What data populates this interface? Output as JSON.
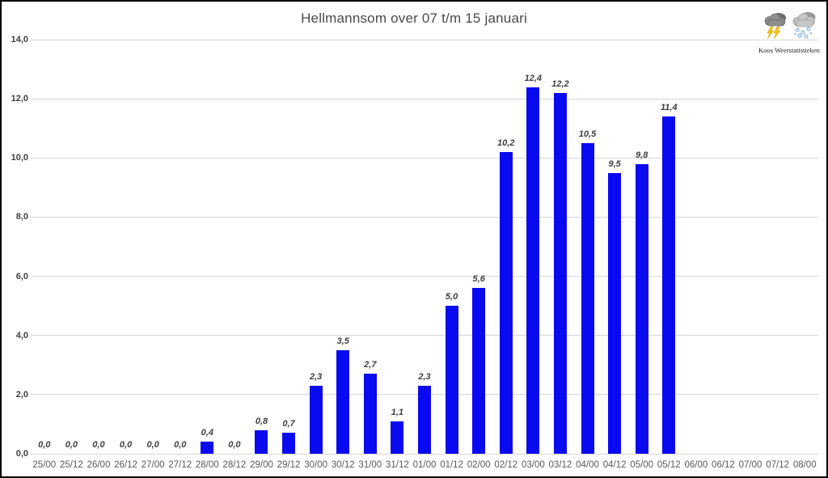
{
  "header": {
    "title": "Hellmannsom over 07 t/m 15 januari",
    "logo": {
      "caption": "Koos Weerstatistieken",
      "icons": [
        "storm-cloud-lightning-icon",
        "snow-cloud-icon"
      ]
    }
  },
  "chart_data": {
    "type": "bar",
    "title": "Hellmannsom over 07 t/m 15 januari",
    "xlabel": "",
    "ylabel": "",
    "ylim": [
      0,
      14
    ],
    "ytick_step": 2,
    "ytick_labels": [
      "0,0",
      "2,0",
      "4,0",
      "6,0",
      "8,0",
      "10,0",
      "12,0",
      "14,0"
    ],
    "grid": true,
    "gridline_color": "#d6d6d6",
    "bar_color": "#0a0af0",
    "legend": "none",
    "categories": [
      "25/00",
      "25/12",
      "26/00",
      "26/12",
      "27/00",
      "27/12",
      "28/00",
      "28/12",
      "29/00",
      "29/12",
      "30/00",
      "30/12",
      "31/00",
      "31/12",
      "01/00",
      "01/12",
      "02/00",
      "02/12",
      "03/00",
      "03/12",
      "04/00",
      "04/12",
      "05/00",
      "05/12",
      "06/00",
      "06/12",
      "07/00",
      "07/12",
      "08/00"
    ],
    "values": [
      0.0,
      0.0,
      0.0,
      0.0,
      0.0,
      0.0,
      0.4,
      0.0,
      0.8,
      0.7,
      2.3,
      3.5,
      2.7,
      1.1,
      2.3,
      5.0,
      5.6,
      10.2,
      12.4,
      12.2,
      10.5,
      9.5,
      9.8,
      11.4,
      null,
      null,
      null,
      null,
      null
    ],
    "value_labels": [
      "0,0",
      "0,0",
      "0,0",
      "0,0",
      "0,0",
      "0,0",
      "0,4",
      "0,0",
      "0,8",
      "0,7",
      "2,3",
      "3,5",
      "2,7",
      "1,1",
      "2,3",
      "5,0",
      "5,6",
      "10,2",
      "12,4",
      "12,2",
      "10,5",
      "9,5",
      "9,8",
      "11,4",
      null,
      null,
      null,
      null,
      null
    ]
  }
}
